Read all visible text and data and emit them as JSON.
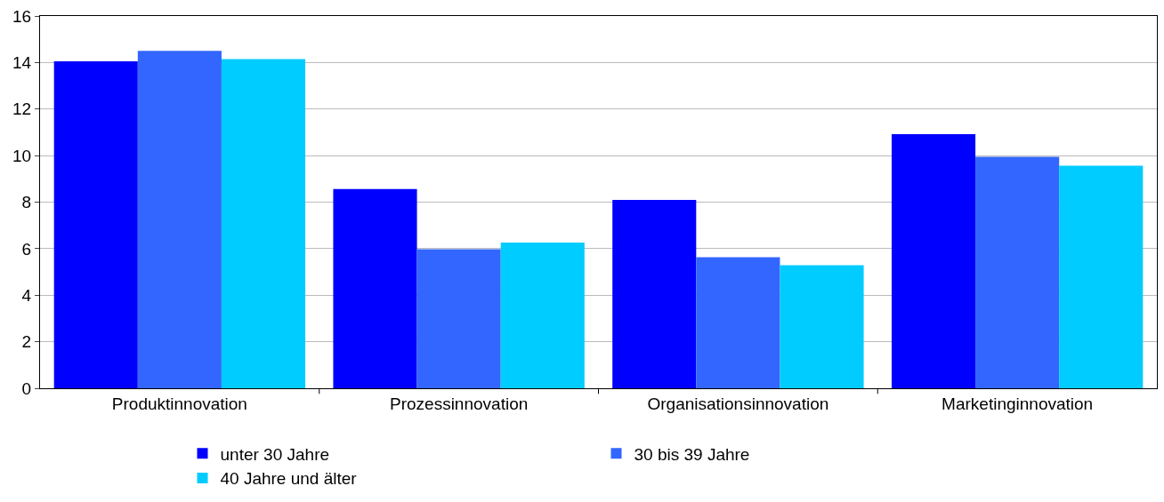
{
  "chart_data": {
    "type": "bar",
    "categories": [
      "Produktinnovation",
      "Prozessinnovation",
      "Organisationsinnovation",
      "Marketinginnovation"
    ],
    "series": [
      {
        "name": "unter 30 Jahre",
        "color": "#0000ff",
        "values": [
          14.05,
          8.56,
          8.1,
          10.92
        ]
      },
      {
        "name": "30 bis 39 Jahre",
        "color": "#3366ff",
        "values": [
          14.5,
          5.98,
          5.63,
          9.95
        ]
      },
      {
        "name": "40 Jahre und älter",
        "color": "#00ccff",
        "values": [
          14.15,
          6.26,
          5.29,
          9.57
        ]
      }
    ],
    "ylim": [
      0,
      16
    ],
    "yticks": [
      0,
      2,
      4,
      6,
      8,
      10,
      12,
      14,
      16
    ],
    "grid": "y",
    "legend": "bottom"
  }
}
